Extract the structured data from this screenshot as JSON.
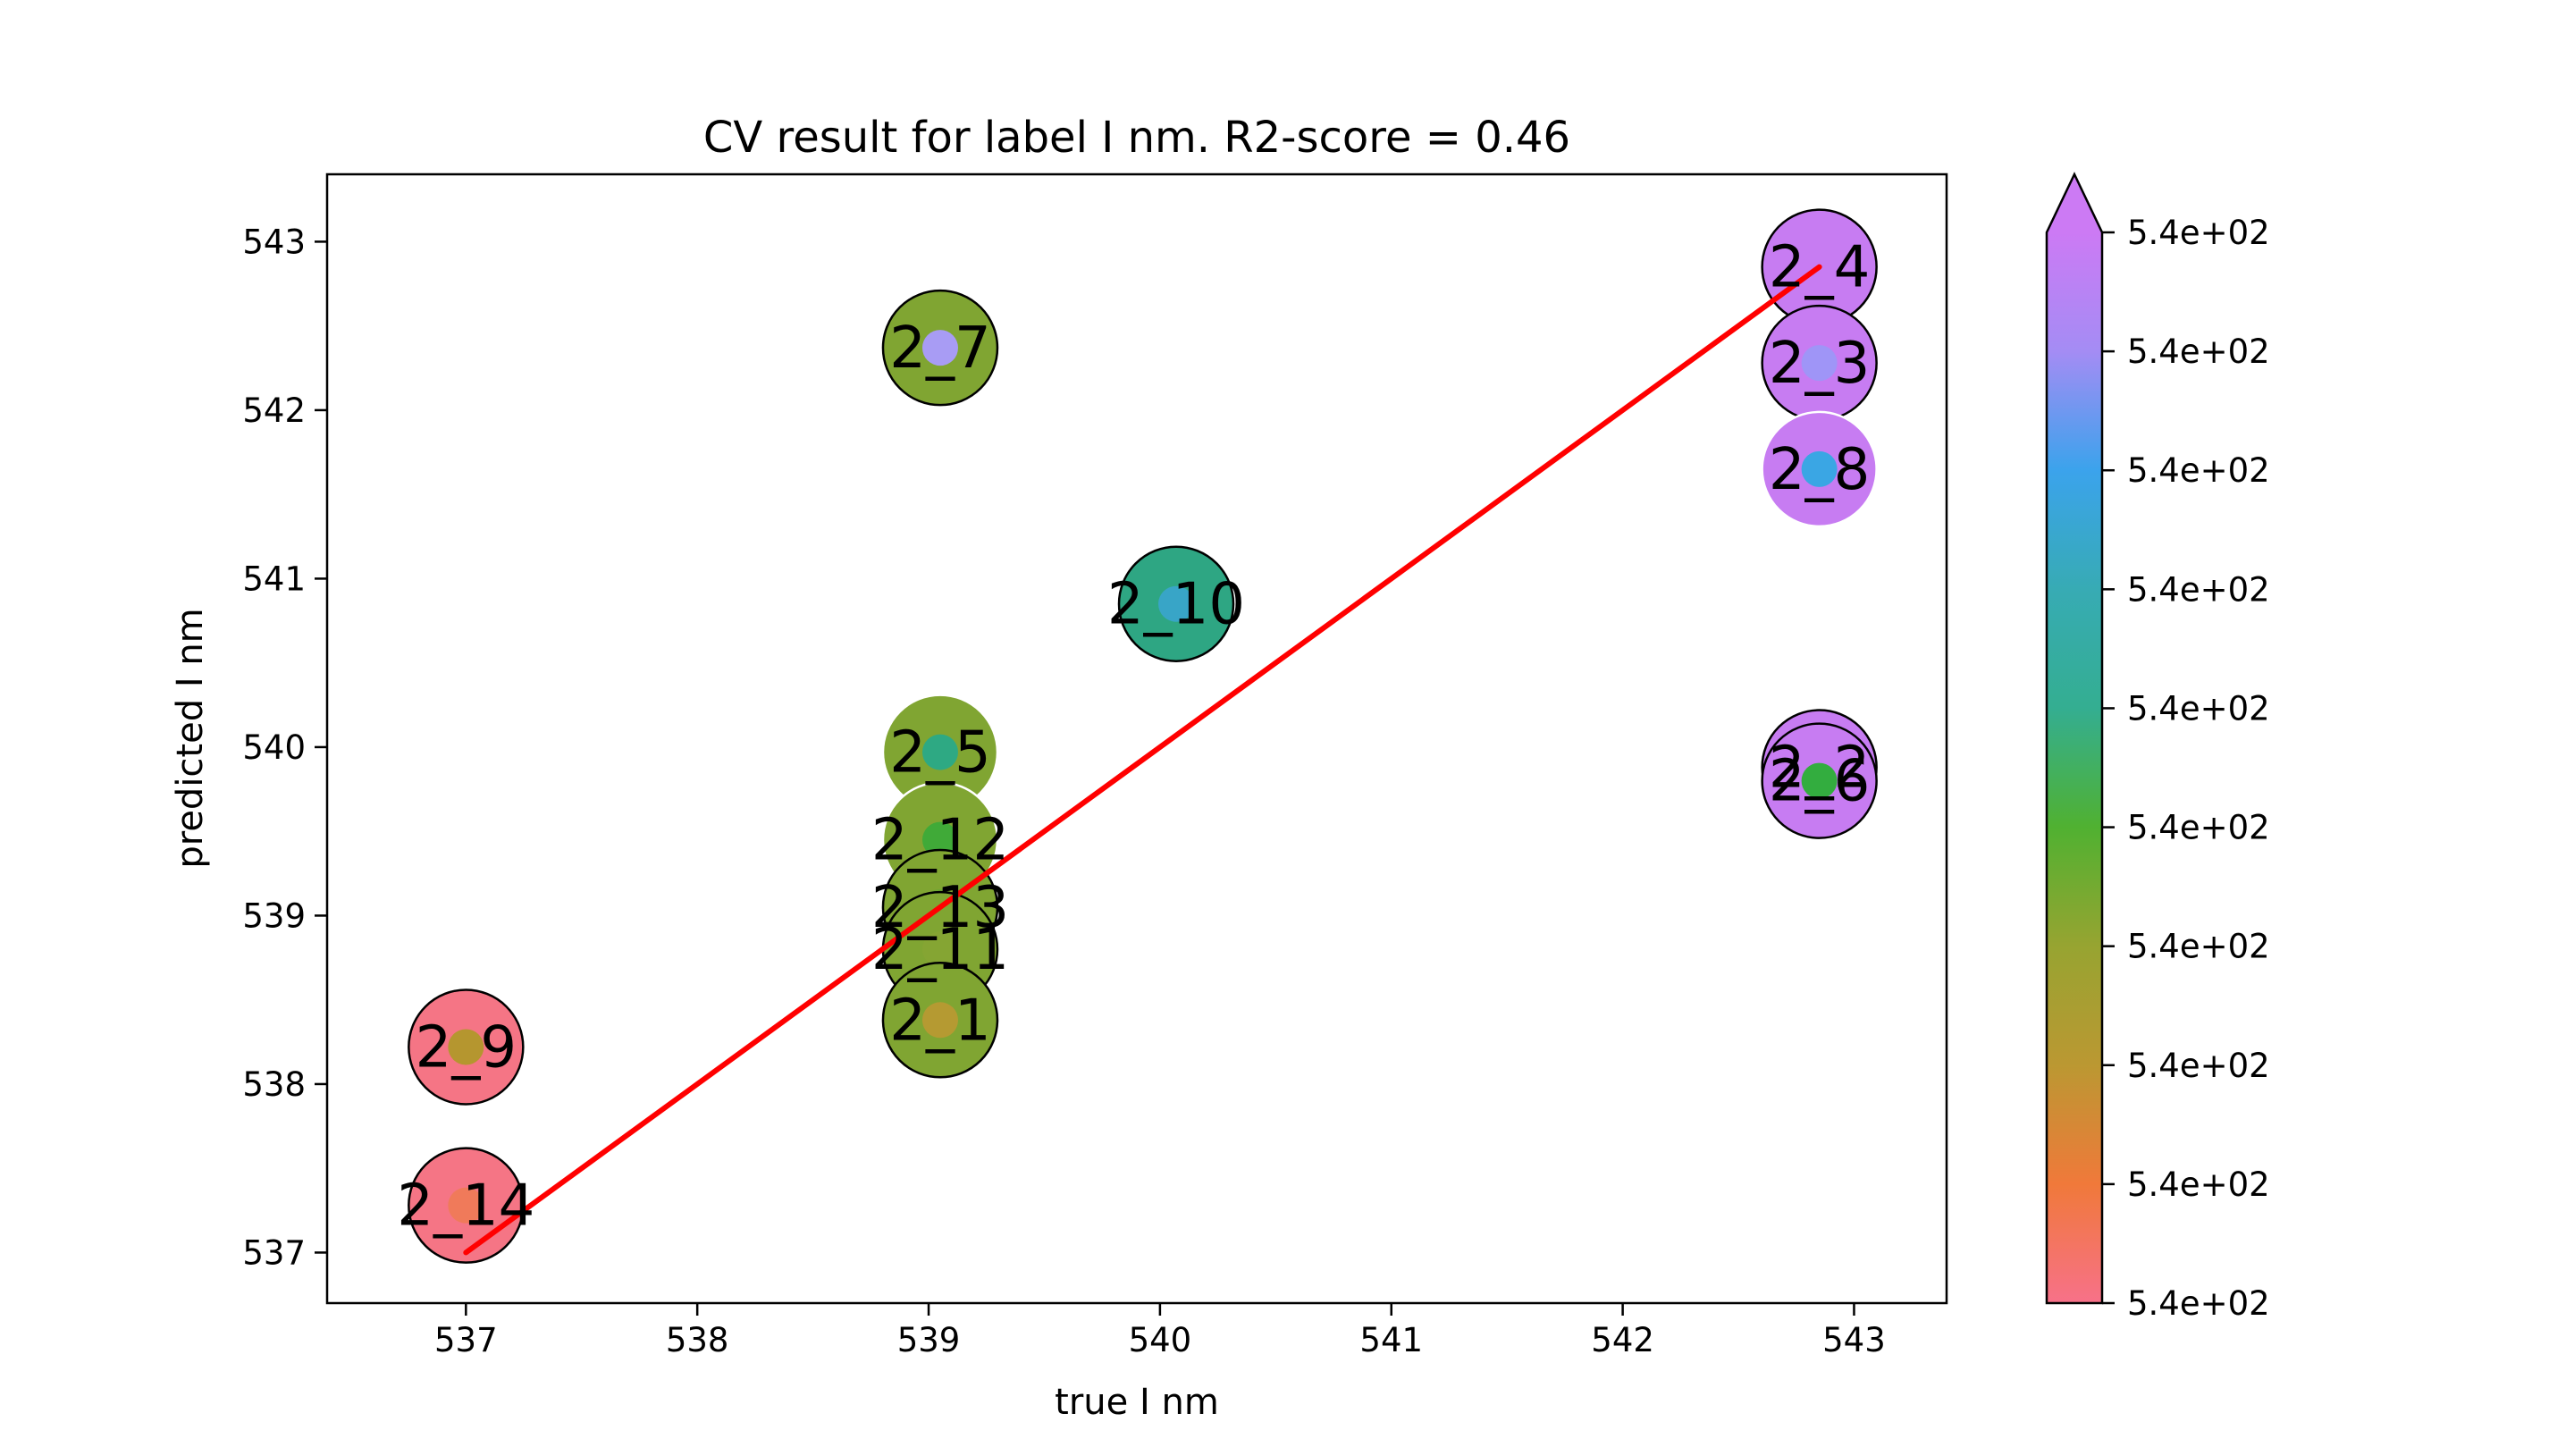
{
  "chart_data": {
    "type": "scatter",
    "title": "CV result for label I nm. R2-score = 0.46",
    "xlabel": "true I nm",
    "ylabel": "predicted I nm",
    "xlim": [
      536.4,
      543.4
    ],
    "ylim": [
      536.7,
      543.4
    ],
    "xticks": [
      537,
      538,
      539,
      540,
      541,
      542,
      543
    ],
    "yticks": [
      537,
      538,
      539,
      540,
      541,
      542,
      543
    ],
    "grid": false,
    "fit_line": {
      "x": [
        537.0,
        542.85
      ],
      "y": [
        537.0,
        542.85
      ],
      "color": "#ff0000"
    },
    "points": [
      {
        "label": "2_4",
        "x": 542.85,
        "y": 542.85,
        "outer_color": "#c77cf2",
        "inner_color": "#c77cf2",
        "edge": "#000000"
      },
      {
        "label": "2_3",
        "x": 542.85,
        "y": 542.28,
        "outer_color": "#c77cf2",
        "inner_color": "#9f95f7",
        "edge": "#000000"
      },
      {
        "label": "2_8",
        "x": 542.85,
        "y": 541.65,
        "outer_color": "#c77cf2",
        "inner_color": "#3aa6e4",
        "edge": "#ffffff"
      },
      {
        "label": "2_2",
        "x": 542.85,
        "y": 539.88,
        "outer_color": "#c77cf2",
        "inner_color": "#2eaa5a",
        "edge": "#000000"
      },
      {
        "label": "2_6",
        "x": 542.85,
        "y": 539.8,
        "outer_color": "#c77cf2",
        "inner_color": "#33ad3f",
        "edge": "#000000"
      },
      {
        "label": "2_7",
        "x": 539.05,
        "y": 542.37,
        "outer_color": "#80a532",
        "inner_color": "#a89cf4",
        "edge": "#000000"
      },
      {
        "label": "2_10",
        "x": 540.07,
        "y": 540.85,
        "outer_color": "#2ea683",
        "inner_color": "#38a5c7",
        "edge": "#000000"
      },
      {
        "label": "2_5",
        "x": 539.05,
        "y": 539.97,
        "outer_color": "#80a532",
        "inner_color": "#2ea983",
        "edge": "#ffffff"
      },
      {
        "label": "2_12",
        "x": 539.05,
        "y": 539.45,
        "outer_color": "#80a532",
        "inner_color": "#40aa38",
        "edge": "#ffffff"
      },
      {
        "label": "2_13",
        "x": 539.05,
        "y": 539.05,
        "outer_color": "#80a532",
        "inner_color": "#6ea832",
        "edge": "#000000"
      },
      {
        "label": "2_11",
        "x": 539.05,
        "y": 538.8,
        "outer_color": "#80a532",
        "inner_color": "#85a533",
        "edge": "#000000"
      },
      {
        "label": "2_1",
        "x": 539.05,
        "y": 538.38,
        "outer_color": "#80a532",
        "inner_color": "#b59a32",
        "edge": "#000000"
      },
      {
        "label": "2_9",
        "x": 537.0,
        "y": 538.22,
        "outer_color": "#f57585",
        "inner_color": "#b5962f",
        "edge": "#000000"
      },
      {
        "label": "2_14",
        "x": 537.0,
        "y": 537.28,
        "outer_color": "#f57585",
        "inner_color": "#f07a5a",
        "edge": "#000000"
      }
    ],
    "colorbar": {
      "tick_labels": [
        "5.4e+02",
        "5.4e+02",
        "5.4e+02",
        "5.4e+02",
        "5.4e+02",
        "5.4e+02",
        "5.4e+02",
        "5.4e+02",
        "5.4e+02",
        "5.4e+02"
      ],
      "colors": [
        "#f77189",
        "#f0793a",
        "#bb9832",
        "#97a431",
        "#50b131",
        "#34ae91",
        "#37abb4",
        "#3ba3ec",
        "#a48cf4",
        "#cc7af4"
      ],
      "extend": "max"
    }
  }
}
